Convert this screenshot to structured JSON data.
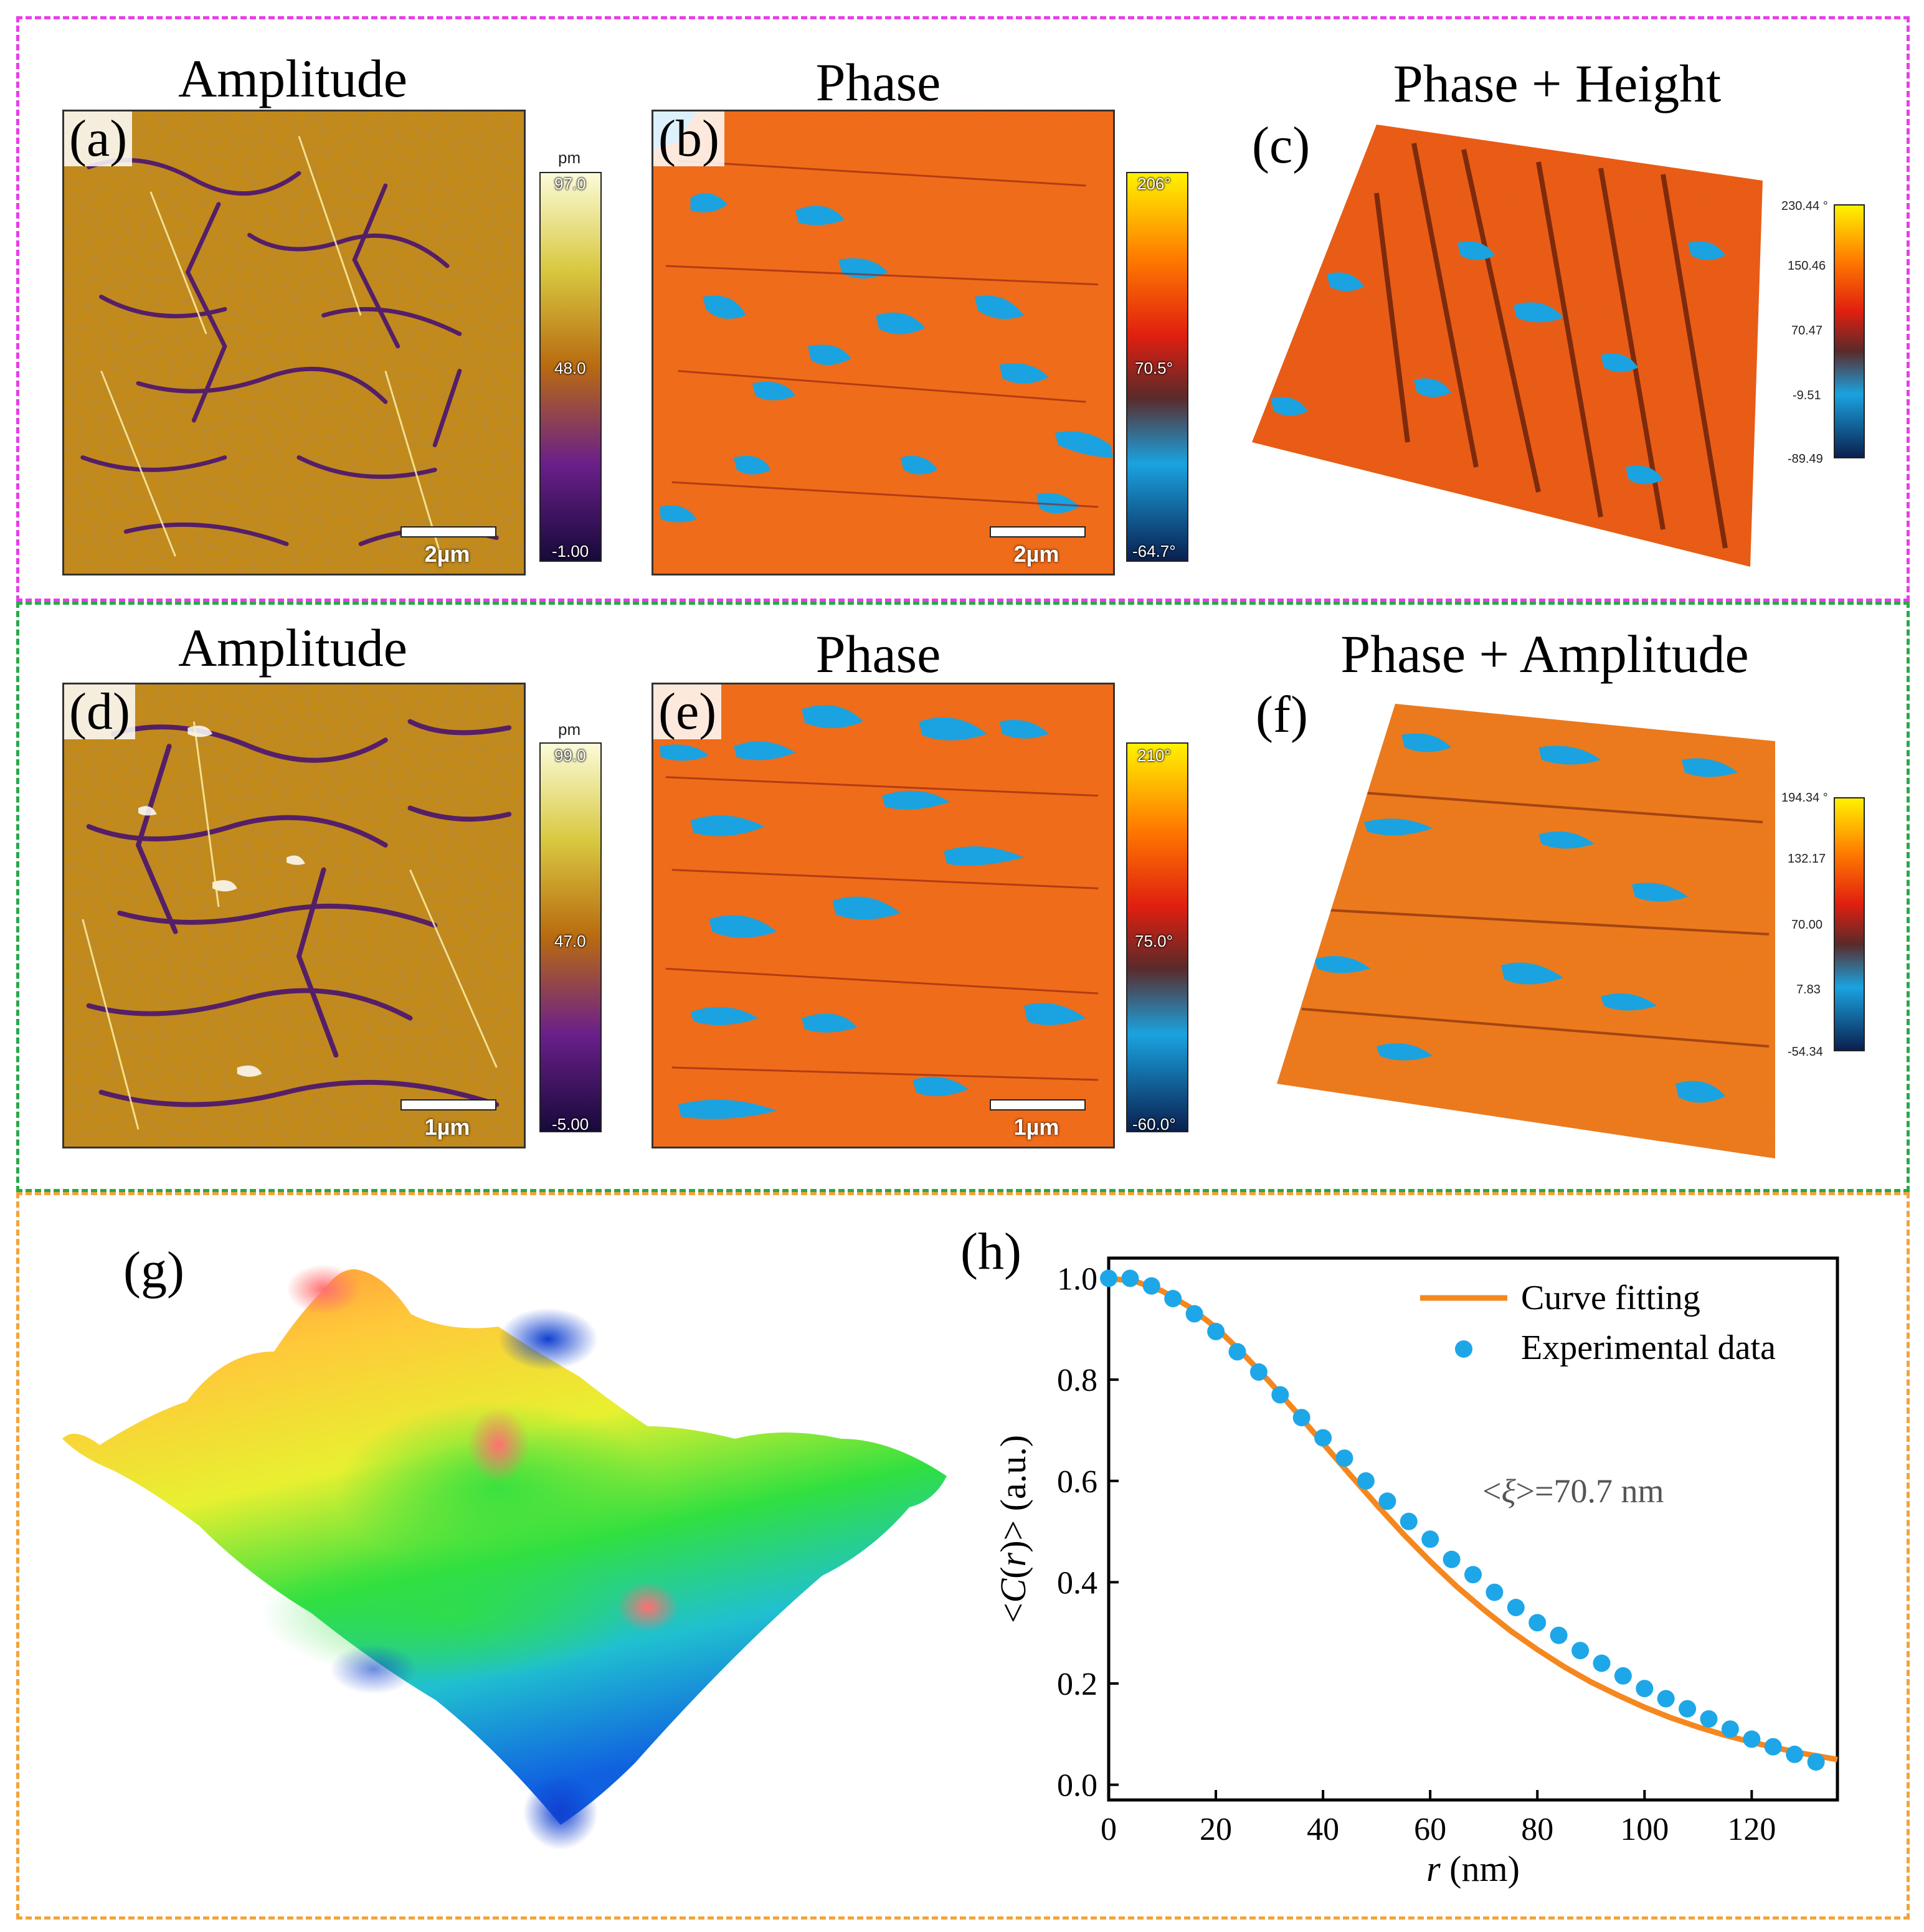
{
  "panels": {
    "a": {
      "label": "(a)",
      "title": "Amplitude",
      "unit": "pm",
      "cbar_max": "97.0",
      "cbar_mid": "48.0",
      "cbar_min": "-1.00",
      "scale": "2µm"
    },
    "b": {
      "label": "(b)",
      "title": "Phase",
      "cbar_max": "206°",
      "cbar_mid": "70.5°",
      "cbar_min": "-64.7°",
      "scale": "2µm"
    },
    "c": {
      "label": "(c)",
      "title": "Phase + Height",
      "ticks": [
        "230.44 °",
        "150.46",
        "70.47",
        "-9.51",
        "-89.49"
      ]
    },
    "d": {
      "label": "(d)",
      "title": "Amplitude",
      "unit": "pm",
      "cbar_max": "99.0",
      "cbar_mid": "47.0",
      "cbar_min": "-5.00",
      "scale": "1µm"
    },
    "e": {
      "label": "(e)",
      "title": "Phase",
      "cbar_max": "210°",
      "cbar_mid": "75.0°",
      "cbar_min": "-60.0°",
      "scale": "1µm"
    },
    "f": {
      "label": "(f)",
      "title": "Phase + Amplitude",
      "ticks": [
        "194.34 °",
        "132.17",
        "70.00",
        "7.83",
        "-54.34"
      ]
    },
    "g": {
      "label": "(g)"
    },
    "h": {
      "label": "(h)"
    }
  },
  "colors": {
    "magenta_box": "#e83ee8",
    "green_box": "#2aa84a",
    "orange_box": "#f2a33a",
    "phase_orange": "#f46a1e",
    "phase_blue": "#1aa3e0",
    "fit_line": "#f5871f",
    "exp_points": "#1ea7e8"
  },
  "chart_data": {
    "type": "line",
    "title": "",
    "xlabel_var": "r",
    "xlabel_unit": " (nm)",
    "ylabel": "<C(r)> (a.u.)",
    "ylabel_parts": [
      "<",
      "C",
      "(",
      "r",
      ")> (a.u.)"
    ],
    "xlim": [
      0,
      136
    ],
    "ylim": [
      -0.03,
      1.04
    ],
    "xticks": [
      0,
      20,
      40,
      60,
      80,
      100,
      120
    ],
    "yticks": [
      0.0,
      0.2,
      0.4,
      0.6,
      0.8,
      1.0
    ],
    "ytick_labels": [
      "0.0",
      "0.2",
      "0.4",
      "0.6",
      "0.8",
      "1.0"
    ],
    "legend": [
      "Curve fitting",
      "Experimental data"
    ],
    "annotation": "<ξ>=70.7 nm",
    "annotation_parts": [
      "<",
      "ξ",
      ">=70.7 nm"
    ],
    "series": [
      {
        "name": "Curve fitting",
        "kind": "line",
        "x": [
          0,
          5,
          10,
          15,
          20,
          25,
          30,
          35,
          40,
          45,
          50,
          55,
          60,
          65,
          70,
          75,
          80,
          85,
          90,
          95,
          100,
          105,
          110,
          115,
          120,
          125,
          130,
          136
        ],
        "y": [
          1.0,
          0.994,
          0.975,
          0.944,
          0.903,
          0.852,
          0.796,
          0.736,
          0.674,
          0.613,
          0.553,
          0.495,
          0.441,
          0.391,
          0.346,
          0.304,
          0.267,
          0.233,
          0.203,
          0.177,
          0.153,
          0.132,
          0.114,
          0.098,
          0.084,
          0.072,
          0.061,
          0.05
        ]
      },
      {
        "name": "Experimental data",
        "kind": "scatter",
        "x": [
          0,
          4,
          8,
          12,
          16,
          20,
          24,
          28,
          32,
          36,
          40,
          44,
          48,
          52,
          56,
          60,
          64,
          68,
          72,
          76,
          80,
          84,
          88,
          92,
          96,
          100,
          104,
          108,
          112,
          116,
          120,
          124,
          128,
          132
        ],
        "y": [
          1.0,
          1.0,
          0.985,
          0.96,
          0.93,
          0.895,
          0.855,
          0.815,
          0.77,
          0.725,
          0.685,
          0.645,
          0.6,
          0.56,
          0.52,
          0.485,
          0.445,
          0.415,
          0.38,
          0.35,
          0.32,
          0.295,
          0.265,
          0.24,
          0.215,
          0.19,
          0.17,
          0.15,
          0.13,
          0.11,
          0.09,
          0.075,
          0.06,
          0.045
        ]
      }
    ]
  }
}
